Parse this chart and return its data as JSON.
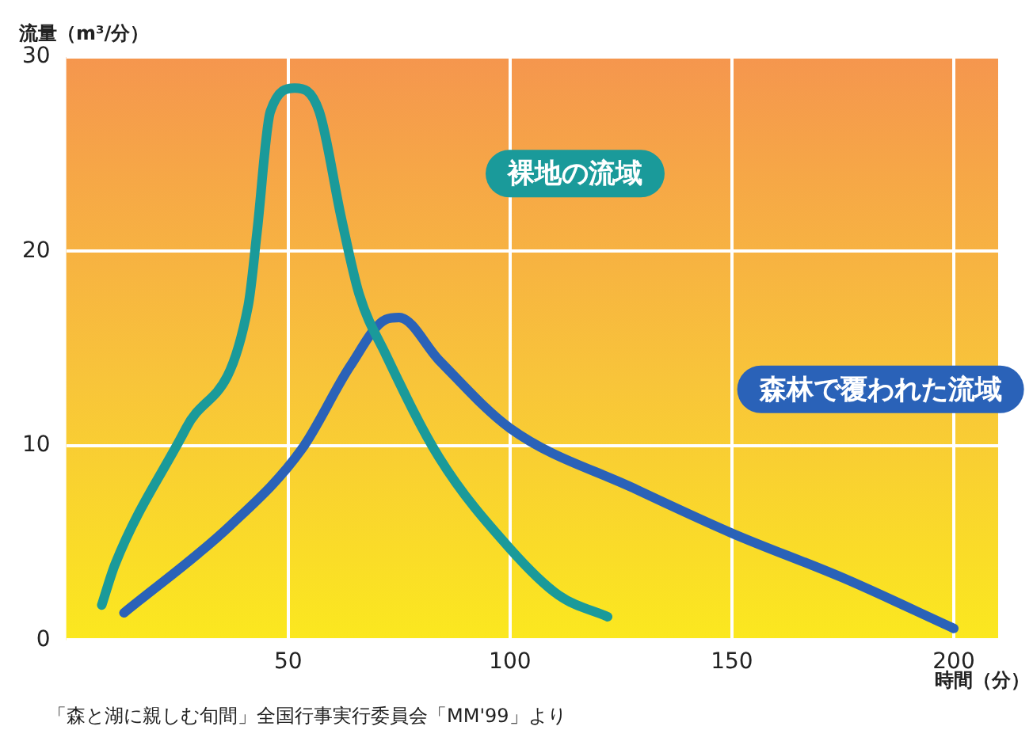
{
  "chart_data": {
    "type": "line",
    "xlabel": "時間（分）",
    "ylabel": "流量（m³/分）",
    "xlim": [
      0,
      210
    ],
    "xticks": [
      50,
      100,
      150,
      200
    ],
    "ylim": [
      0,
      30
    ],
    "yticks": [
      0,
      10,
      20,
      30
    ],
    "grid": true,
    "legend": false,
    "marker": "none",
    "line_style": "solid",
    "annotations": [
      "「森と湖に親しむ旬間」全国行事実行委員会「MM'99」より"
    ],
    "series": [
      {
        "name": "裸地の流域",
        "color": "#1a9a9a",
        "x": [
          8,
          11,
          27,
          41,
          43,
          46,
          51.5,
          57,
          62,
          66,
          72,
          84,
          100,
          111,
          122
        ],
        "values": [
          1.8,
          3.9,
          10.9,
          17.2,
          21,
          27.2,
          28.4,
          27.2,
          21.7,
          17.8,
          14.7,
          9.4,
          4.7,
          2.3,
          1.2
        ]
      },
      {
        "name": "森林で覆われた流域",
        "color": "#2a62b8",
        "x": [
          13,
          37,
          53,
          64,
          72,
          75,
          84,
          100,
          128,
          150,
          175,
          200
        ],
        "values": [
          1.4,
          5.9,
          9.8,
          14.1,
          16.5,
          16.6,
          14.4,
          10.9,
          7.8,
          5.5,
          3.2,
          0.6
        ]
      }
    ]
  }
}
